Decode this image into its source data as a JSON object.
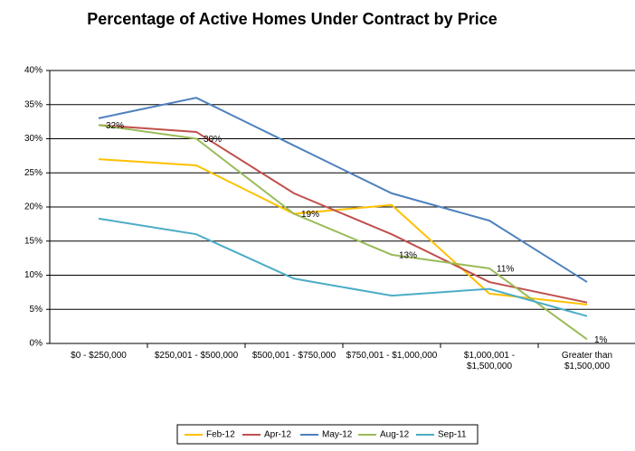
{
  "chart_data": {
    "type": "line",
    "title": "Percentage of Active Homes Under Contract by Price",
    "categories": [
      "$0 - $250,000",
      "$250,001 - $500,000",
      "$500,001 - $750,000",
      "$750,001 - $1,000,000",
      "$1,000,001 -\n$1,500,000",
      "Greater than\n$1,500,000"
    ],
    "series": [
      {
        "name": "Feb-12",
        "color": "#FFC000",
        "values": [
          27,
          26.1,
          19,
          20.3,
          7.3,
          5.7
        ]
      },
      {
        "name": "Apr-12",
        "color": "#C0504D",
        "values": [
          32,
          31,
          22,
          16,
          9,
          6
        ]
      },
      {
        "name": "May-12",
        "color": "#4F81BD",
        "values": [
          33,
          36,
          29,
          22,
          18,
          9
        ]
      },
      {
        "name": "Aug-12",
        "color": "#9BBB59",
        "values": [
          32,
          30,
          19,
          13,
          11,
          0.6
        ],
        "value_labels": [
          "32%",
          "30%",
          "19%",
          "13%",
          "11%",
          "1%"
        ]
      },
      {
        "name": "Sep-11",
        "color": "#4BACC6",
        "values": [
          18.3,
          16,
          9.5,
          7,
          8,
          4
        ]
      }
    ],
    "ylim": [
      0,
      40
    ],
    "yticks": [
      {
        "value": 0,
        "label": "0%"
      },
      {
        "value": 5,
        "label": "5%"
      },
      {
        "value": 10,
        "label": "10%"
      },
      {
        "value": 15,
        "label": "15%"
      },
      {
        "value": 20,
        "label": "20%"
      },
      {
        "value": 25,
        "label": "25%"
      },
      {
        "value": 30,
        "label": "30%"
      },
      {
        "value": 35,
        "label": "35%"
      },
      {
        "value": 40,
        "label": "40%"
      }
    ],
    "grid": true,
    "legend": "bottom"
  }
}
